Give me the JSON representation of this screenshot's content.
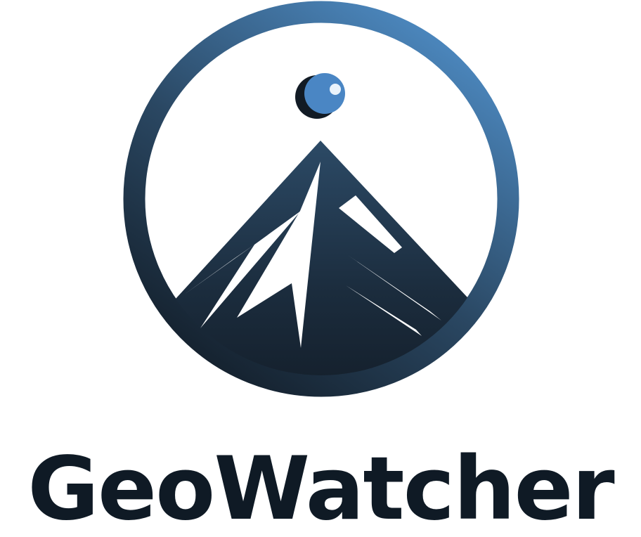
{
  "brand": {
    "name": "GeoWatcher",
    "text_color": "#0f1a25",
    "gradient_light": "#4a84bb",
    "gradient_dark": "#15222f",
    "accent_blue": "#4a86c4"
  },
  "icons": {
    "mark": "mountain-peak-in-circle-icon",
    "orb": "watching-eye-orb-icon"
  }
}
